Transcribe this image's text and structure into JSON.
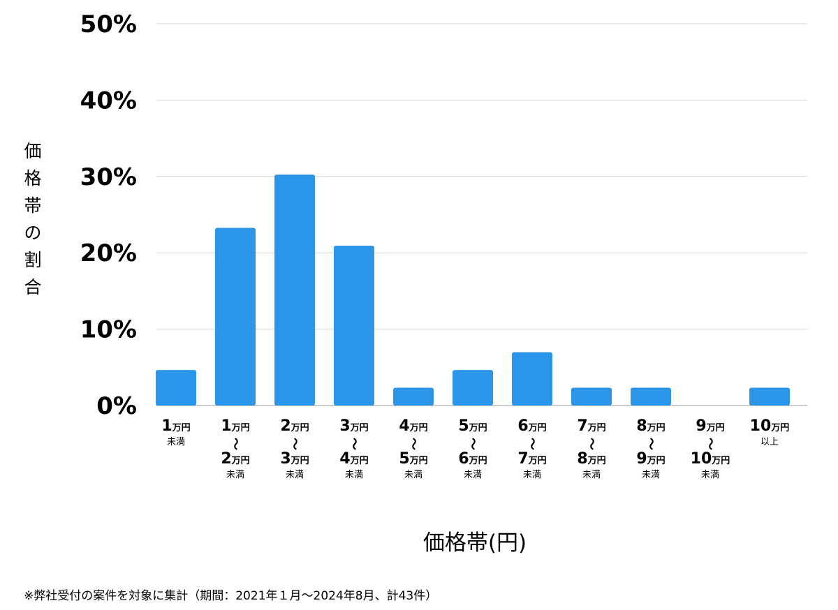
{
  "chart_data": {
    "type": "bar",
    "categories": [
      {
        "lines": [
          "1万円"
        ],
        "note": "未満"
      },
      {
        "lines": [
          "1万円",
          "〜",
          "2万円"
        ],
        "note": "未満"
      },
      {
        "lines": [
          "2万円",
          "〜",
          "3万円"
        ],
        "note": "未満"
      },
      {
        "lines": [
          "3万円",
          "〜",
          "4万円"
        ],
        "note": "未満"
      },
      {
        "lines": [
          "4万円",
          "〜",
          "5万円"
        ],
        "note": "未満"
      },
      {
        "lines": [
          "5万円",
          "〜",
          "6万円"
        ],
        "note": "未満"
      },
      {
        "lines": [
          "6万円",
          "〜",
          "7万円"
        ],
        "note": "未満"
      },
      {
        "lines": [
          "7万円",
          "〜",
          "8万円"
        ],
        "note": "未満"
      },
      {
        "lines": [
          "8万円",
          "〜",
          "9万円"
        ],
        "note": "未満"
      },
      {
        "lines": [
          "9万円",
          "〜",
          "10万円"
        ],
        "note": "未満"
      },
      {
        "lines": [
          "10万円"
        ],
        "note": "以上"
      }
    ],
    "values": [
      4.65,
      23.26,
      30.23,
      20.93,
      2.33,
      4.65,
      6.98,
      2.33,
      2.33,
      0,
      2.33
    ],
    "yticks": [
      "0%",
      "10%",
      "20%",
      "30%",
      "40%",
      "50%"
    ],
    "ylim": [
      0,
      50
    ],
    "ylabel": "価格帯の割合",
    "xlabel": "価格帯(円)",
    "grid": true,
    "bar_color": "#2b95e9"
  },
  "footnote": "※弊社受付の案件を対象に集計（期間：2021年１月〜2024年8月、計43件）"
}
